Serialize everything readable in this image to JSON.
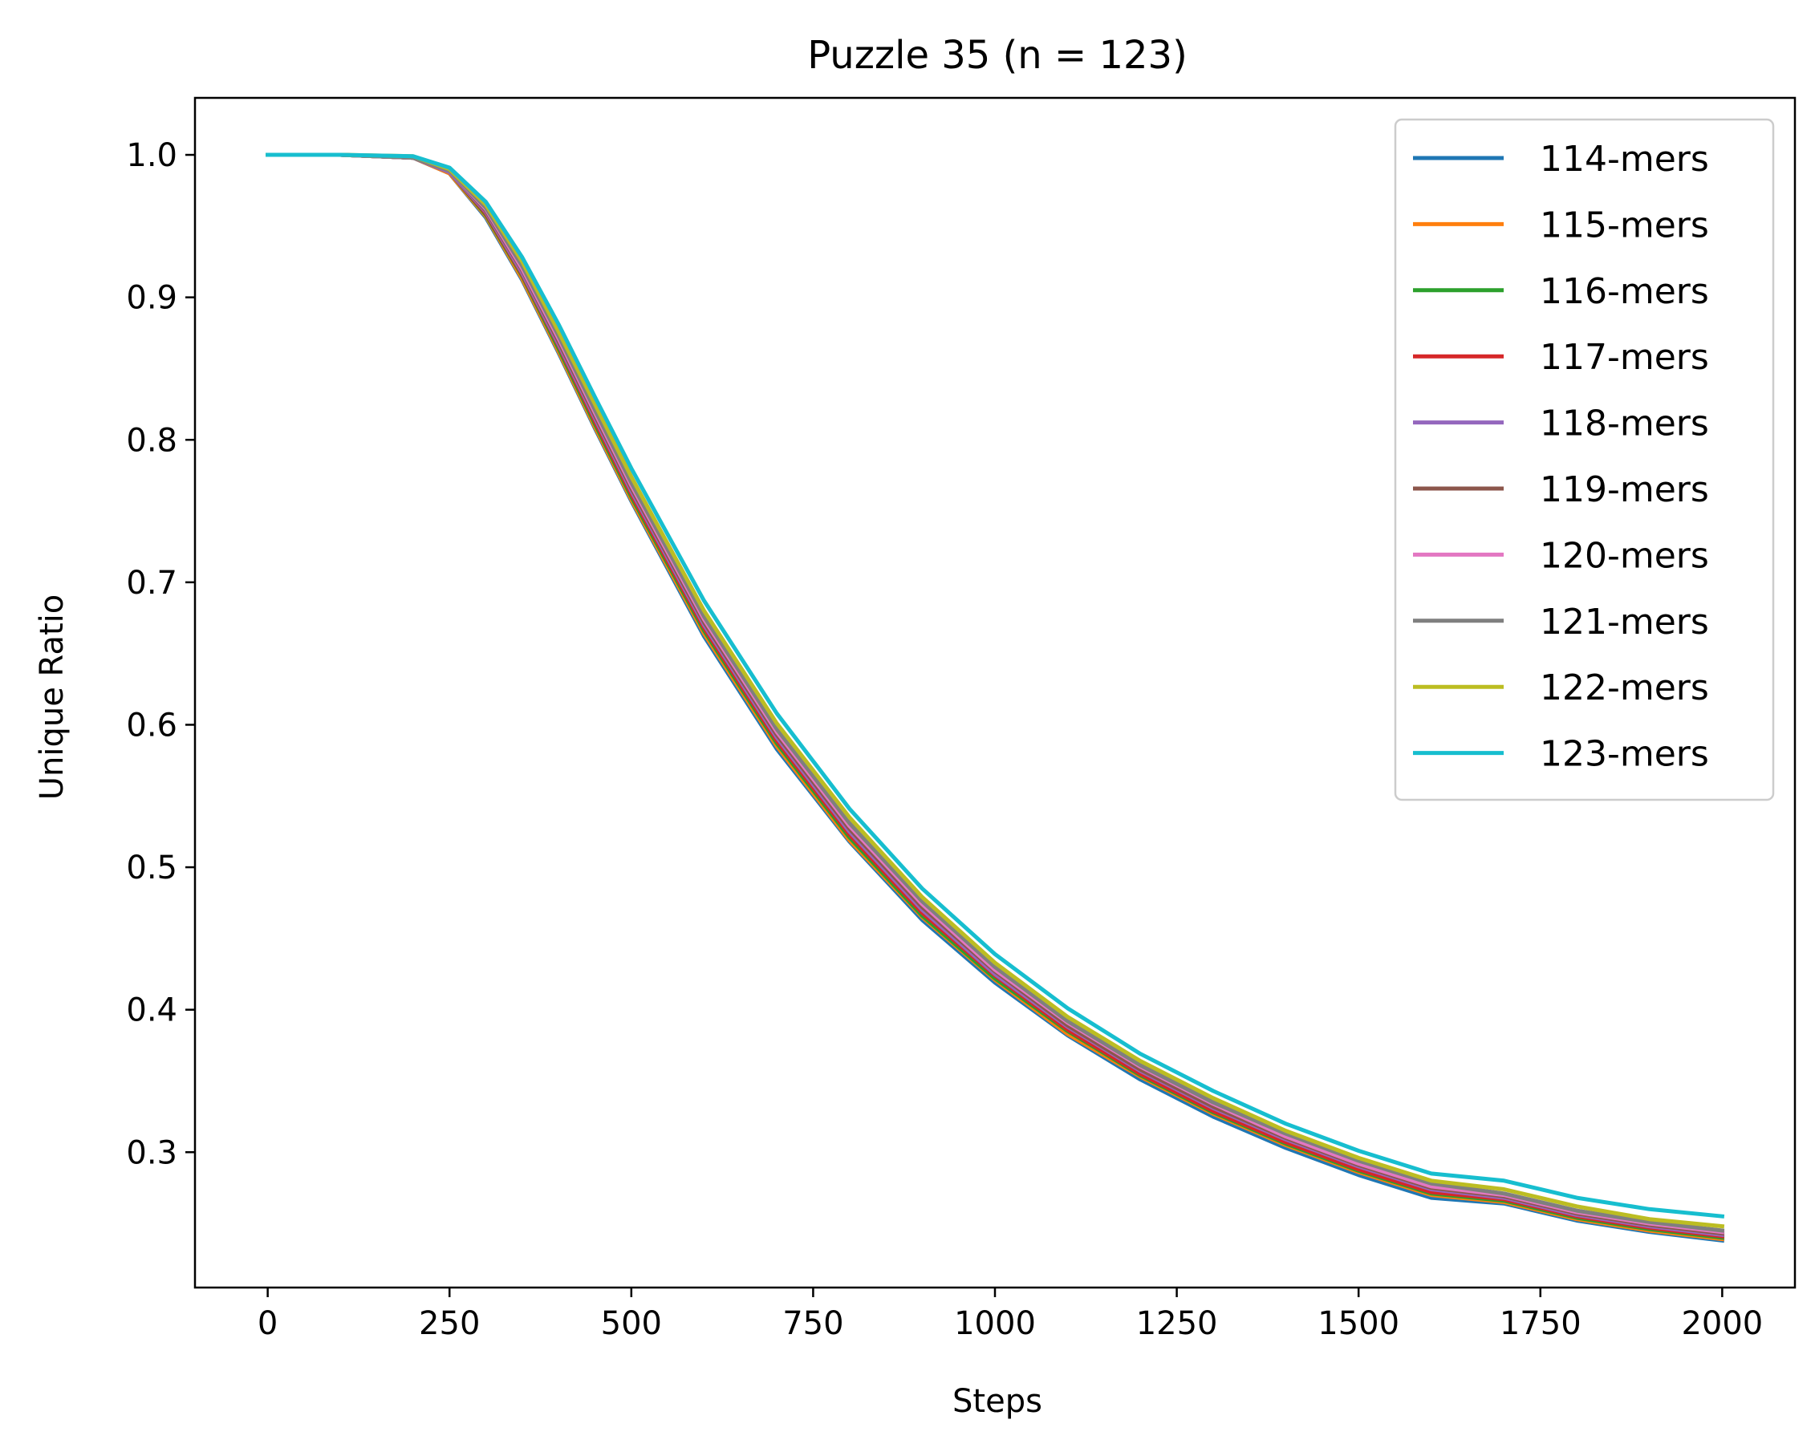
{
  "chart_data": {
    "type": "line",
    "title": "Puzzle 35 (n = 123)",
    "xlabel": "Steps",
    "ylabel": "Unique Ratio",
    "xlim": [
      -100,
      2100
    ],
    "ylim": [
      0.205,
      1.04
    ],
    "xticks": [
      0,
      250,
      500,
      750,
      1000,
      1250,
      1500,
      1750,
      2000
    ],
    "xtick_labels": [
      "0",
      "250",
      "500",
      "750",
      "1000",
      "1250",
      "1500",
      "1750",
      "2000"
    ],
    "yticks": [
      0.3,
      0.4,
      0.5,
      0.6,
      0.7,
      0.8,
      0.9,
      1.0
    ],
    "ytick_labels": [
      "0.3",
      "0.4",
      "0.5",
      "0.6",
      "0.7",
      "0.8",
      "0.9",
      "1.0"
    ],
    "grid": false,
    "legend_position": "top-right",
    "x": [
      0,
      100,
      200,
      250,
      300,
      350,
      400,
      450,
      500,
      600,
      700,
      800,
      900,
      1000,
      1100,
      1200,
      1300,
      1400,
      1500,
      1600,
      1700,
      1800,
      1900,
      2000
    ],
    "series": [
      {
        "name": "114-mers",
        "color": "#1f77b4",
        "values": [
          1.0,
          1.0,
          0.998,
          0.987,
          0.956,
          0.912,
          0.861,
          0.808,
          0.757,
          0.662,
          0.583,
          0.518,
          0.463,
          0.419,
          0.382,
          0.351,
          0.325,
          0.303,
          0.284,
          0.268,
          0.264,
          0.252,
          0.244,
          0.238
        ]
      },
      {
        "name": "115-mers",
        "color": "#ff7f0e",
        "values": [
          1.0,
          1.0,
          0.998,
          0.987,
          0.957,
          0.913,
          0.862,
          0.809,
          0.758,
          0.664,
          0.585,
          0.519,
          0.465,
          0.421,
          0.383,
          0.353,
          0.327,
          0.305,
          0.286,
          0.27,
          0.265,
          0.253,
          0.245,
          0.239
        ]
      },
      {
        "name": "116-mers",
        "color": "#2ca02c",
        "values": [
          1.0,
          1.0,
          0.998,
          0.988,
          0.958,
          0.915,
          0.864,
          0.811,
          0.76,
          0.666,
          0.587,
          0.521,
          0.466,
          0.422,
          0.385,
          0.354,
          0.328,
          0.306,
          0.287,
          0.271,
          0.266,
          0.254,
          0.246,
          0.24
        ]
      },
      {
        "name": "117-mers",
        "color": "#d62728",
        "values": [
          1.0,
          1.0,
          0.998,
          0.988,
          0.959,
          0.916,
          0.866,
          0.813,
          0.762,
          0.668,
          0.589,
          0.523,
          0.468,
          0.424,
          0.386,
          0.355,
          0.329,
          0.307,
          0.288,
          0.272,
          0.267,
          0.255,
          0.247,
          0.241
        ]
      },
      {
        "name": "118-mers",
        "color": "#9467bd",
        "values": [
          1.0,
          1.0,
          0.998,
          0.988,
          0.96,
          0.917,
          0.867,
          0.815,
          0.764,
          0.67,
          0.591,
          0.525,
          0.47,
          0.425,
          0.388,
          0.357,
          0.331,
          0.309,
          0.29,
          0.274,
          0.268,
          0.256,
          0.248,
          0.242
        ]
      },
      {
        "name": "119-mers",
        "color": "#8c564b",
        "values": [
          1.0,
          1.0,
          0.998,
          0.989,
          0.961,
          0.919,
          0.869,
          0.817,
          0.766,
          0.672,
          0.593,
          0.527,
          0.472,
          0.427,
          0.389,
          0.358,
          0.332,
          0.31,
          0.291,
          0.275,
          0.269,
          0.257,
          0.249,
          0.243
        ]
      },
      {
        "name": "120-mers",
        "color": "#e377c2",
        "values": [
          1.0,
          1.0,
          0.998,
          0.989,
          0.962,
          0.92,
          0.871,
          0.819,
          0.768,
          0.674,
          0.595,
          0.529,
          0.474,
          0.428,
          0.391,
          0.36,
          0.334,
          0.311,
          0.292,
          0.276,
          0.27,
          0.258,
          0.25,
          0.244
        ]
      },
      {
        "name": "121-mers",
        "color": "#7f7f7f",
        "values": [
          1.0,
          1.0,
          0.998,
          0.989,
          0.963,
          0.922,
          0.873,
          0.821,
          0.77,
          0.676,
          0.597,
          0.531,
          0.476,
          0.43,
          0.392,
          0.361,
          0.335,
          0.313,
          0.294,
          0.278,
          0.271,
          0.259,
          0.251,
          0.245
        ]
      },
      {
        "name": "122-mers",
        "color": "#bcbd22",
        "values": [
          1.0,
          1.0,
          0.999,
          0.99,
          0.965,
          0.925,
          0.876,
          0.825,
          0.774,
          0.68,
          0.601,
          0.535,
          0.479,
          0.433,
          0.395,
          0.364,
          0.338,
          0.315,
          0.296,
          0.28,
          0.274,
          0.262,
          0.253,
          0.248
        ]
      },
      {
        "name": "123-mers",
        "color": "#17becf",
        "values": [
          1.0,
          1.0,
          0.999,
          0.991,
          0.967,
          0.928,
          0.881,
          0.83,
          0.78,
          0.687,
          0.608,
          0.541,
          0.485,
          0.439,
          0.401,
          0.369,
          0.343,
          0.32,
          0.301,
          0.285,
          0.28,
          0.268,
          0.26,
          0.255
        ]
      }
    ]
  }
}
